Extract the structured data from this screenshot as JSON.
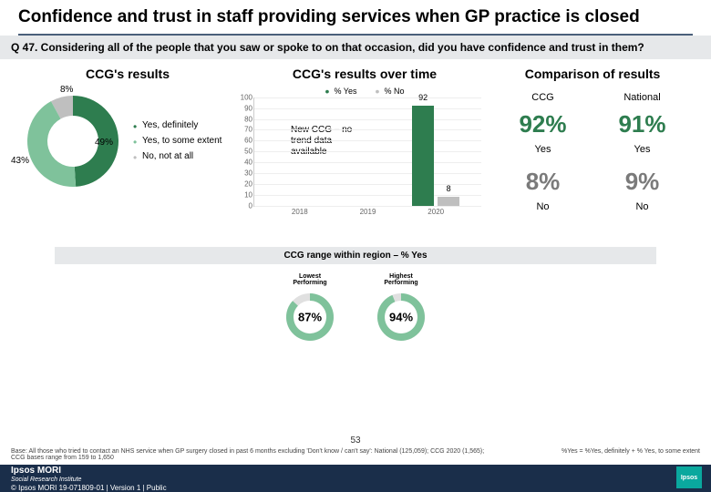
{
  "title": "Confidence and trust in staff providing services when GP practice is closed",
  "question": "Q 47. Considering all of the people that you saw or spoke to on that occasion, did you have confidence and trust in them?",
  "col1_heading": "CCG's results",
  "col2_heading": "CCG's results over time",
  "col3_heading": "Comparison of results",
  "donut": {
    "type": "donut",
    "segments": [
      {
        "label": "Yes, definitely",
        "value": 49,
        "color": "#2e7d4f"
      },
      {
        "label": "Yes, to some extent",
        "value": 43,
        "color": "#7fc29b"
      },
      {
        "label": "No, not at all",
        "value": 8,
        "color": "#bfbfbf"
      }
    ],
    "display_labels": {
      "a": "8%",
      "b": "49%",
      "c": "43%"
    }
  },
  "legend_items": [
    "Yes, definitely",
    "Yes, to some extent",
    "No, not at all"
  ],
  "time_chart": {
    "type": "bar",
    "series_labels": {
      "yes": "% Yes",
      "no": "% No"
    },
    "ylim": [
      0,
      100
    ],
    "ytick_step": 10,
    "years": [
      "2018",
      "2019",
      "2020"
    ],
    "bars_2020": {
      "yes": 92,
      "no": 8
    },
    "yes_color": "#2e7d4f",
    "no_color": "#bfbfbf",
    "overlay_note": "New CCG – no\ntrend data\navailable"
  },
  "comparison": {
    "headers": {
      "ccg": "CCG",
      "national": "National"
    },
    "rows": [
      {
        "ccg": "92%",
        "ccg_color": "#2e7d4f",
        "nat": "91%",
        "nat_color": "#2e7d4f",
        "lbl": "Yes"
      },
      {
        "ccg": "8%",
        "ccg_color": "#7a7a7a",
        "nat": "9%",
        "nat_color": "#7a7a7a",
        "lbl": "No"
      }
    ]
  },
  "region_band": "CCG range within region – % Yes",
  "range": {
    "low": {
      "label": "Lowest\nPerforming",
      "value": "87%",
      "pct": 87,
      "color": "#7fc29b"
    },
    "high": {
      "label": "Highest\nPerforming",
      "value": "94%",
      "pct": 94,
      "color": "#7fc29b"
    }
  },
  "base_text": "Base: All those who tried to contact an NHS service when GP surgery closed in past 6 months excluding 'Don't know / can't say': National (125,059); CCG 2020 (1,565); CCG bases range from 159 to 1,650",
  "note_text": "%Yes = %Yes, definitely + % Yes, to some extent",
  "page_num": "53",
  "footer_brand": "Ipsos MORI",
  "footer_sub": "Social Research Institute",
  "footer_meta": "© Ipsos MORI    19-071809-01 | Version 1 | Public",
  "ipsos_logo": "Ipsos"
}
